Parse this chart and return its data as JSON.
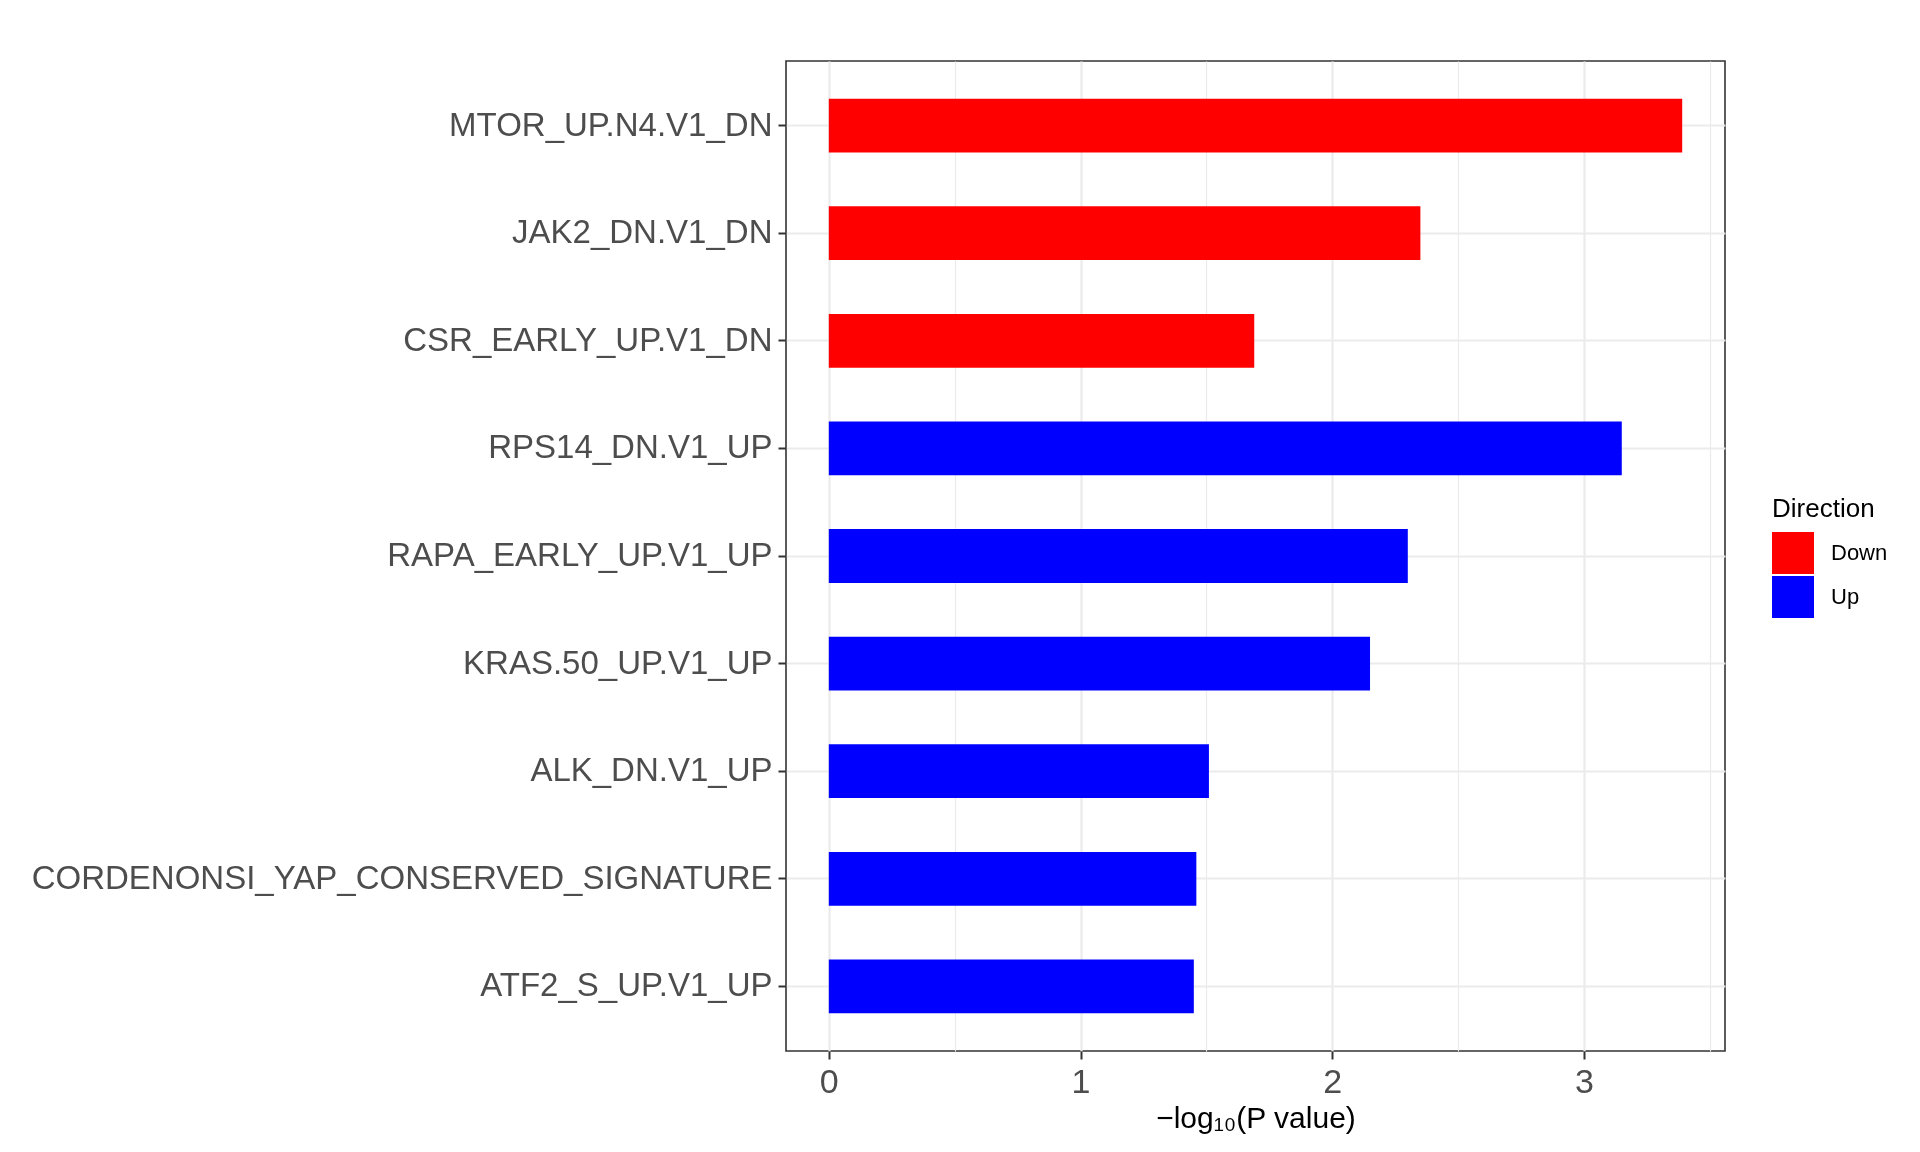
{
  "chart_data": {
    "type": "bar",
    "orientation": "horizontal",
    "categories": [
      "MTOR_UP.N4.V1_DN",
      "JAK2_DN.V1_DN",
      "CSR_EARLY_UP.V1_DN",
      "RPS14_DN.V1_UP",
      "RAPA_EARLY_UP.V1_UP",
      "KRAS.50_UP.V1_UP",
      "ALK_DN.V1_UP",
      "CORDENONSI_YAP_CONSERVED_SIGNATURE",
      "ATF2_S_UP.V1_UP"
    ],
    "series": [
      {
        "name": "Down",
        "color": "#ff0000",
        "values": [
          3.39,
          2.35,
          1.69,
          null,
          null,
          null,
          null,
          null,
          null
        ]
      },
      {
        "name": "Up",
        "color": "#0000ff",
        "values": [
          null,
          null,
          null,
          3.15,
          2.3,
          2.15,
          1.51,
          1.46,
          1.45
        ]
      }
    ],
    "xlabel": "−log₁₀(P value)",
    "legend_title": "Direction",
    "xlim": [
      -0.17,
      3.56
    ],
    "xticks": [
      0,
      {
        "value": 0.5,
        "label": null
      },
      1,
      {
        "value": 1.5,
        "label": null
      },
      2,
      {
        "value": 2.5,
        "label": null
      },
      3,
      {
        "value": 3.5,
        "label": null
      }
    ],
    "grid": true,
    "legend": "right"
  }
}
